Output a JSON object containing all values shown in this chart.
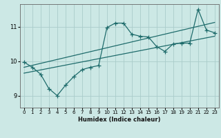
{
  "xlabel": "Humidex (Indice chaleur)",
  "bg_color": "#cce8e5",
  "line_color": "#1e6b6b",
  "grid_color": "#aaccca",
  "xlim": [
    -0.5,
    23.5
  ],
  "ylim": [
    8.65,
    11.65
  ],
  "yticks": [
    9,
    10,
    11
  ],
  "xticks": [
    0,
    1,
    2,
    3,
    4,
    5,
    6,
    7,
    8,
    9,
    10,
    11,
    12,
    13,
    14,
    15,
    16,
    17,
    18,
    19,
    20,
    21,
    22,
    23
  ],
  "series1_x": [
    0,
    1,
    2,
    3,
    4,
    5,
    6,
    7,
    8,
    9,
    10,
    11,
    12,
    13,
    14,
    15,
    16,
    17,
    18,
    19,
    20,
    21,
    22,
    23
  ],
  "series1_y": [
    9.97,
    9.82,
    9.62,
    9.2,
    9.0,
    9.3,
    9.55,
    9.75,
    9.82,
    9.87,
    10.97,
    11.1,
    11.1,
    10.78,
    10.72,
    10.7,
    10.42,
    10.28,
    10.5,
    10.52,
    10.52,
    11.5,
    10.9,
    10.82
  ],
  "series2_x": [
    0,
    23
  ],
  "series2_y": [
    9.65,
    10.72
  ],
  "series3_x": [
    0,
    23
  ],
  "series3_y": [
    9.82,
    11.12
  ]
}
